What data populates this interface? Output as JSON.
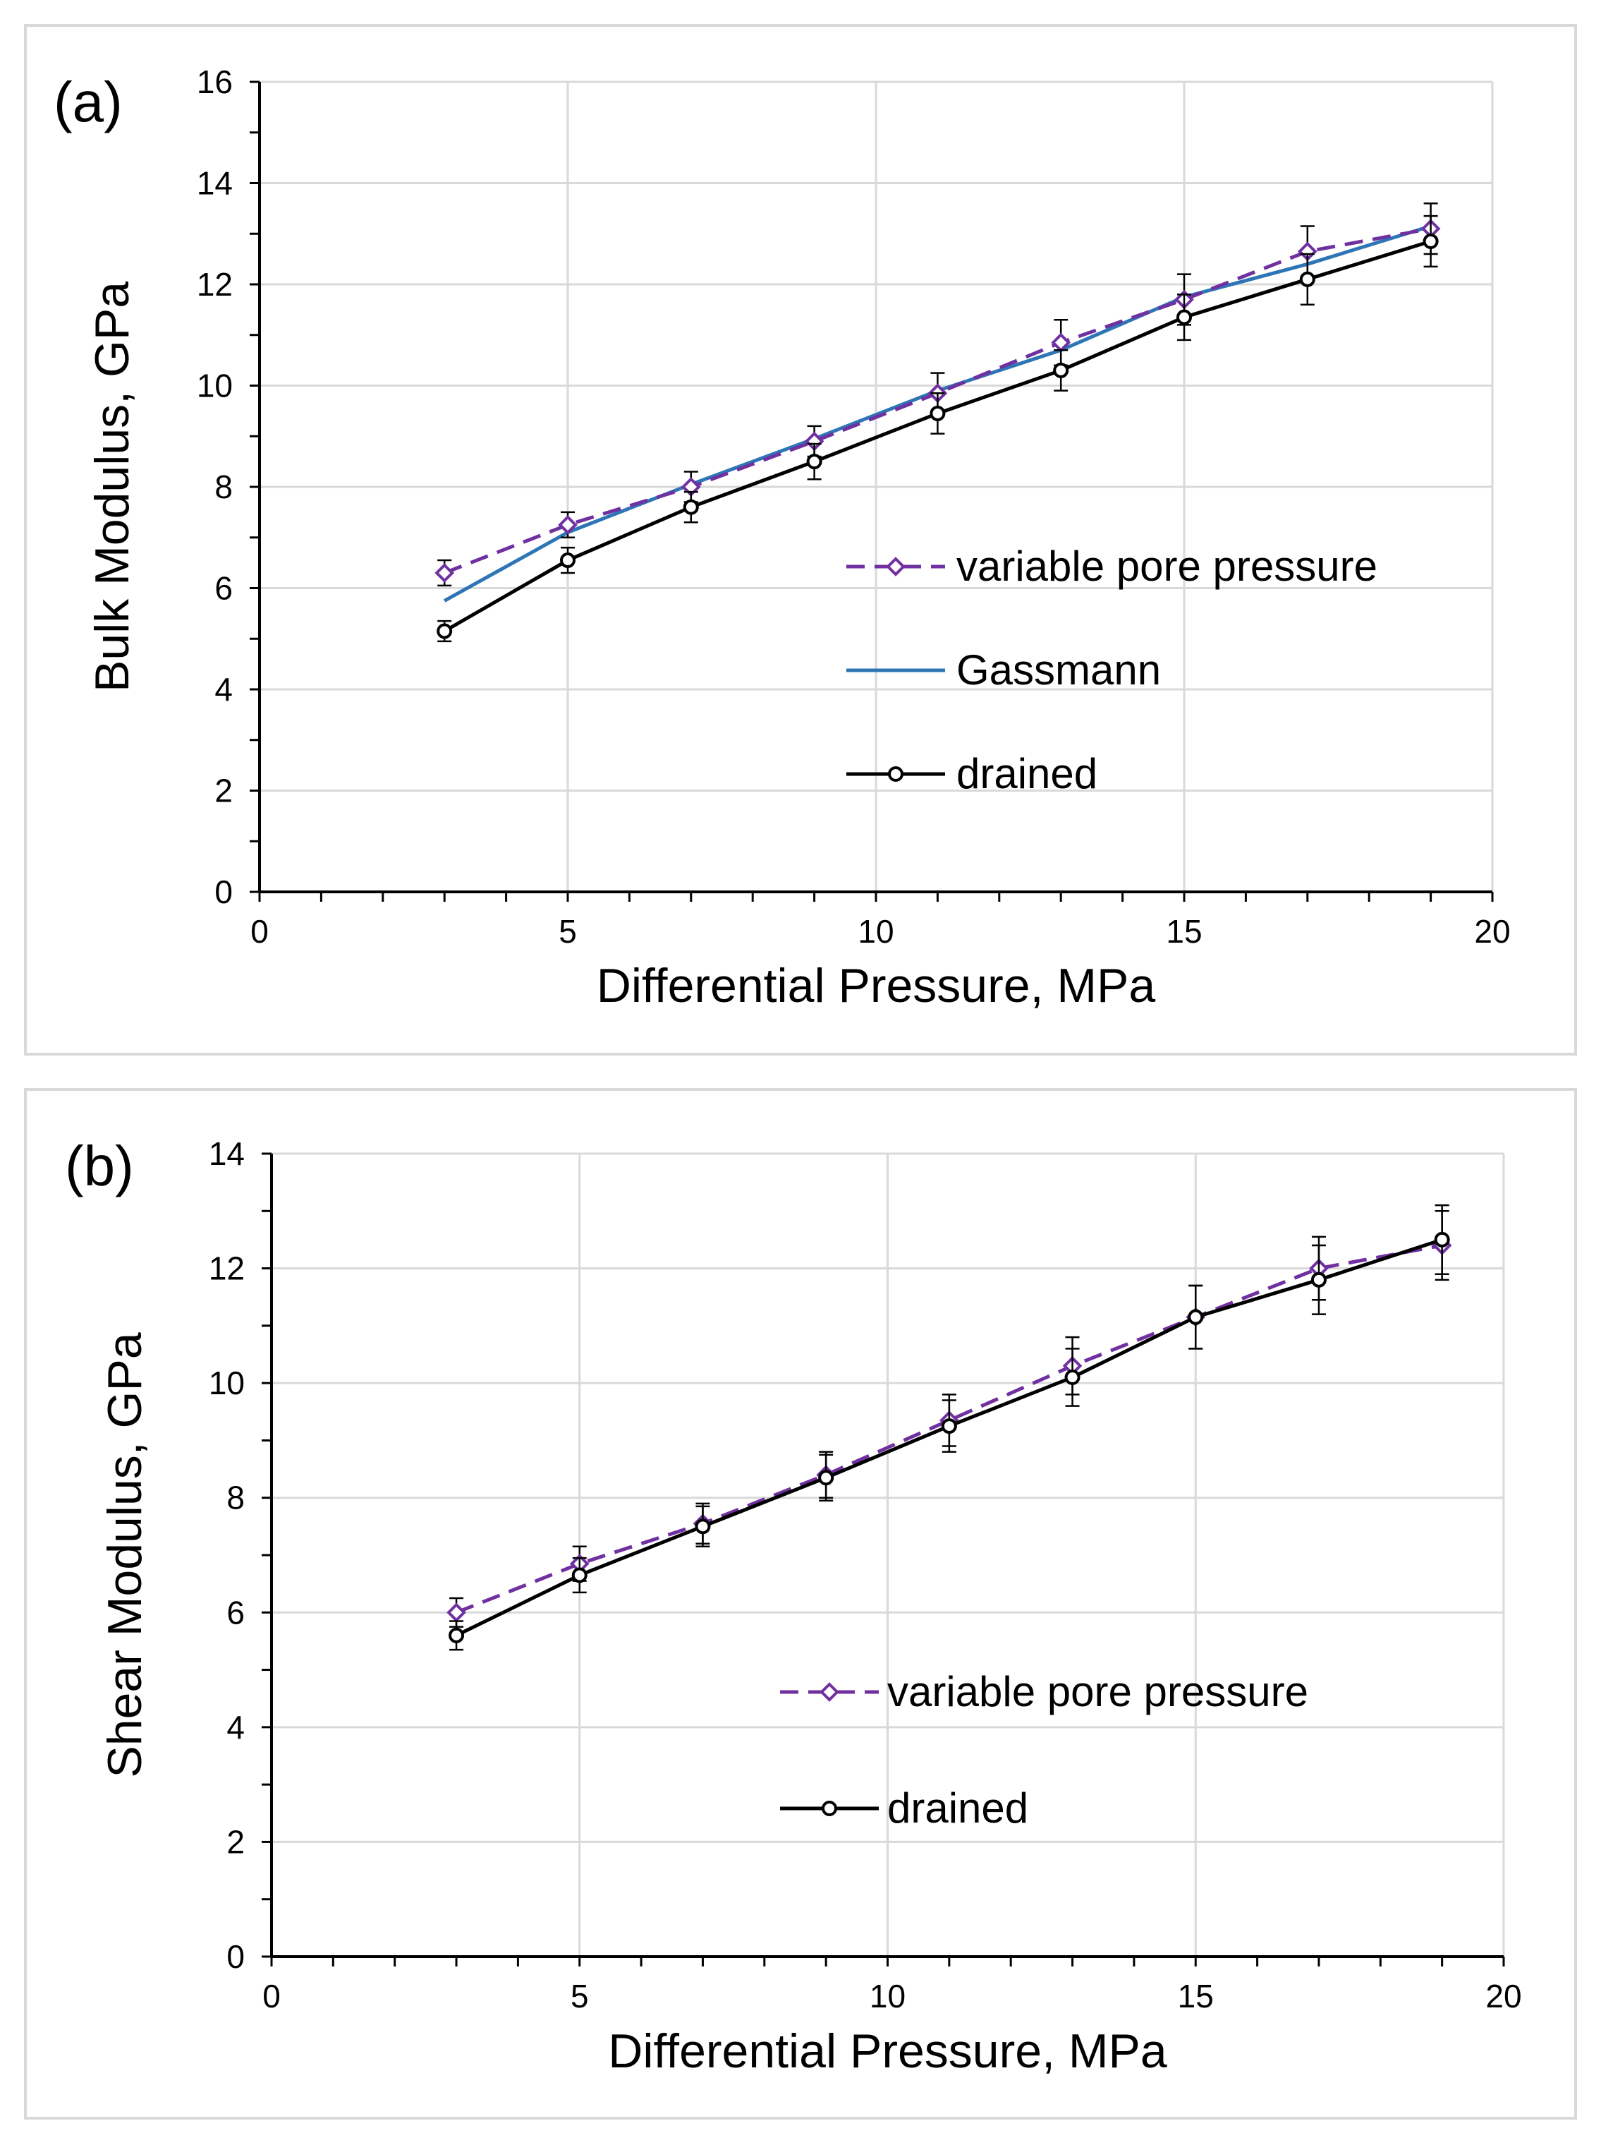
{
  "chart_data": [
    {
      "type": "line",
      "panel_label": "(a)",
      "xlabel": "Differential Pressure, MPa",
      "ylabel": "Bulk Modulus, GPa",
      "xlim": [
        0,
        20
      ],
      "ylim": [
        0,
        16
      ],
      "xticks": [
        0,
        5,
        10,
        15,
        20
      ],
      "yticks": [
        0,
        2,
        4,
        6,
        8,
        10,
        12,
        14,
        16
      ],
      "grid": true,
      "legend_position": "lower-right",
      "series": [
        {
          "name": "variable pore pressure",
          "style": "dashed-diamond",
          "color": "#7030a0",
          "x": [
            3,
            5,
            7,
            9,
            11,
            13,
            15,
            17,
            19
          ],
          "y": [
            6.3,
            7.25,
            8.0,
            8.9,
            9.85,
            10.85,
            11.7,
            12.65,
            13.1
          ],
          "err": [
            0.25,
            0.25,
            0.3,
            0.3,
            0.4,
            0.45,
            0.5,
            0.5,
            0.5
          ]
        },
        {
          "name": "Gassmann",
          "style": "solid",
          "color": "#2e75b6",
          "x": [
            3,
            5,
            7,
            9,
            11,
            13,
            15,
            17,
            19
          ],
          "y": [
            5.75,
            7.1,
            8.05,
            8.95,
            9.9,
            10.7,
            11.75,
            12.4,
            13.15
          ]
        },
        {
          "name": "drained",
          "style": "solid-circle",
          "color": "#000000",
          "x": [
            3,
            5,
            7,
            9,
            11,
            13,
            15,
            17,
            19
          ],
          "y": [
            5.15,
            6.55,
            7.6,
            8.5,
            9.45,
            10.3,
            11.35,
            12.1,
            12.85
          ],
          "err": [
            0.2,
            0.25,
            0.3,
            0.35,
            0.4,
            0.4,
            0.45,
            0.5,
            0.5
          ]
        }
      ]
    },
    {
      "type": "line",
      "panel_label": "(b)",
      "xlabel": "Differential Pressure, MPa",
      "ylabel": "Shear Modulus, GPa",
      "xlim": [
        0,
        20
      ],
      "ylim": [
        0,
        14
      ],
      "xticks": [
        0,
        5,
        10,
        15,
        20
      ],
      "yticks": [
        0,
        2,
        4,
        6,
        8,
        10,
        12,
        14
      ],
      "grid": true,
      "legend_position": "lower-right",
      "series": [
        {
          "name": "variable pore pressure",
          "style": "dashed-diamond",
          "color": "#7030a0",
          "x": [
            3,
            5,
            7,
            9,
            11,
            13,
            15,
            17,
            19
          ],
          "y": [
            6.0,
            6.85,
            7.55,
            8.4,
            9.35,
            10.3,
            11.15,
            12.0,
            12.4
          ],
          "err": [
            0.25,
            0.3,
            0.35,
            0.4,
            0.45,
            0.5,
            0.55,
            0.55,
            0.6
          ]
        },
        {
          "name": "drained",
          "style": "solid-circle",
          "color": "#000000",
          "x": [
            3,
            5,
            7,
            9,
            11,
            13,
            15,
            17,
            19
          ],
          "y": [
            5.6,
            6.65,
            7.5,
            8.35,
            9.25,
            10.1,
            11.15,
            11.8,
            12.5
          ],
          "err": [
            0.25,
            0.3,
            0.35,
            0.4,
            0.45,
            0.5,
            0.55,
            0.6,
            0.6
          ]
        }
      ]
    }
  ]
}
